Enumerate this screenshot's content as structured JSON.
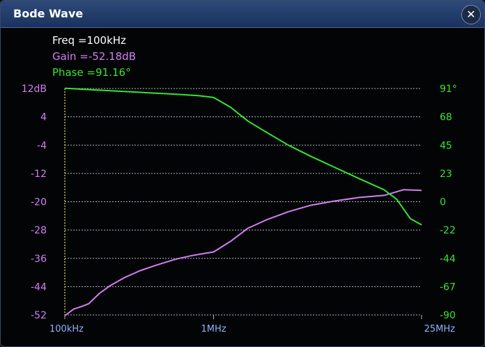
{
  "window": {
    "title": "Bode Wave",
    "close_glyph": "✕"
  },
  "cursor_readout": {
    "freq": "Freq =100kHz",
    "gain": "Gain =-52.18dB",
    "phase": "Phase =91.16°"
  },
  "colors": {
    "gain": "#d57ef5",
    "phase": "#33e633",
    "freq": "#8fb4ff",
    "cursor": "#e8e84a",
    "grid": "#b0b8c8",
    "readout_freq": "#ffffff"
  },
  "chart_data": {
    "type": "line",
    "x_scale": "log",
    "x_range_hz": [
      100000,
      25000000
    ],
    "x_tick_labels": [
      {
        "hz": 100000,
        "label": "100kHz"
      },
      {
        "hz": 1000000,
        "label": "1MHz"
      },
      {
        "hz": 25000000,
        "label": "25MHz"
      }
    ],
    "y_left": {
      "unit": "dB",
      "range": [
        -52,
        12
      ],
      "tick_labels": [
        "12dB",
        "4",
        "-4",
        "-12",
        "-20",
        "-28",
        "-36",
        "-44",
        "-52"
      ]
    },
    "y_right": {
      "unit": "deg",
      "range": [
        -90,
        91
      ],
      "tick_labels": [
        "91°",
        "68",
        "45",
        "23",
        "0",
        "-22",
        "-44",
        "-67",
        "-90"
      ]
    },
    "grid": true,
    "cursor_hz": 100000,
    "series": [
      {
        "axis": "left",
        "points": [
          [
            100000,
            -52.2
          ],
          [
            115000,
            -50.3
          ],
          [
            130000,
            -49.6
          ],
          [
            145000,
            -48.8
          ],
          [
            170000,
            -46.0
          ],
          [
            200000,
            -43.8
          ],
          [
            250000,
            -41.5
          ],
          [
            320000,
            -39.5
          ],
          [
            420000,
            -37.8
          ],
          [
            550000,
            -36.3
          ],
          [
            700000,
            -35.3
          ],
          [
            900000,
            -34.5
          ],
          [
            1000000,
            -34.2
          ],
          [
            1300000,
            -31.2
          ],
          [
            1700000,
            -27.5
          ],
          [
            2300000,
            -25.0
          ],
          [
            3200000,
            -22.8
          ],
          [
            4500000,
            -21.0
          ],
          [
            6500000,
            -19.8
          ],
          [
            9500000,
            -18.8
          ],
          [
            14000000,
            -18.2
          ],
          [
            19000000,
            -16.6
          ],
          [
            25000000,
            -16.8
          ]
        ]
      },
      {
        "axis": "right",
        "points": [
          [
            100000,
            91.2
          ],
          [
            150000,
            90.0
          ],
          [
            250000,
            88.6
          ],
          [
            400000,
            87.3
          ],
          [
            600000,
            86.2
          ],
          [
            800000,
            85.2
          ],
          [
            1000000,
            83.8
          ],
          [
            1300000,
            76.0
          ],
          [
            1700000,
            65.0
          ],
          [
            2300000,
            55.5
          ],
          [
            3200000,
            45.5
          ],
          [
            4500000,
            36.8
          ],
          [
            6500000,
            28.0
          ],
          [
            9500000,
            19.0
          ],
          [
            14000000,
            10.0
          ],
          [
            17000000,
            2.5
          ],
          [
            21000000,
            -13.0
          ],
          [
            25000000,
            -18.0
          ]
        ]
      }
    ]
  }
}
